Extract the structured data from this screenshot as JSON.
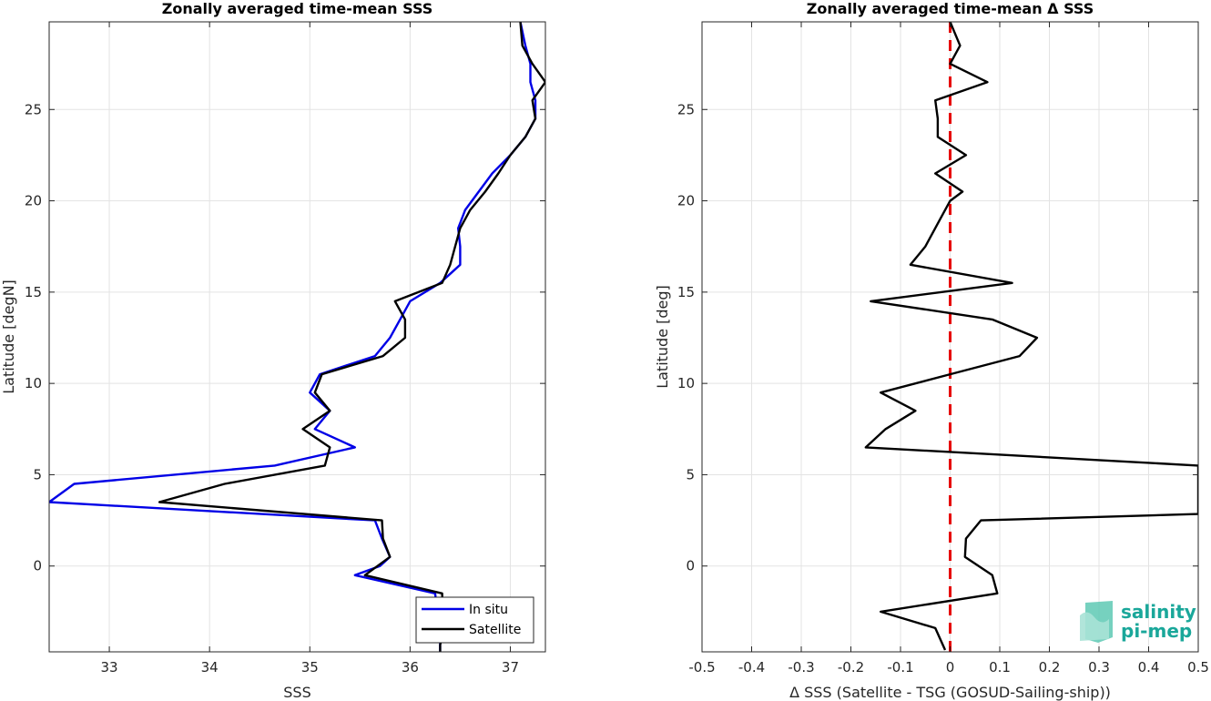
{
  "chart_data": [
    {
      "type": "line",
      "title": "Zonally averaged time-mean SSS",
      "xlabel": "SSS",
      "ylabel": "Latitude [degN]",
      "xlim": [
        32.4,
        37.35
      ],
      "ylim": [
        -4.7,
        29.8
      ],
      "xticks": [
        33,
        34,
        35,
        36,
        37
      ],
      "yticks": [
        0,
        5,
        10,
        15,
        20,
        25
      ],
      "grid": true,
      "legend_position": "bottom-right",
      "series": [
        {
          "name": "In situ",
          "color": "#0000e6",
          "points": [
            [
              36.3,
              -4.7
            ],
            [
              36.3,
              -4.3
            ],
            [
              36.3,
              -3.8
            ],
            [
              36.25,
              -1.5
            ],
            [
              35.45,
              -0.5
            ],
            [
              35.7,
              0.0
            ],
            [
              35.8,
              0.5
            ],
            [
              35.72,
              1.5
            ],
            [
              35.65,
              2.5
            ],
            [
              32.4,
              3.5
            ],
            [
              32.65,
              4.5
            ],
            [
              34.65,
              5.5
            ],
            [
              35.45,
              6.5
            ],
            [
              35.05,
              7.5
            ],
            [
              35.2,
              8.5
            ],
            [
              35.0,
              9.5
            ],
            [
              35.1,
              10.5
            ],
            [
              35.65,
              11.5
            ],
            [
              35.8,
              12.5
            ],
            [
              35.9,
              13.5
            ],
            [
              36.0,
              14.5
            ],
            [
              36.3,
              15.5
            ],
            [
              36.5,
              16.5
            ],
            [
              36.5,
              17.5
            ],
            [
              36.48,
              18.5
            ],
            [
              36.55,
              19.5
            ],
            [
              36.82,
              21.5
            ],
            [
              37.0,
              22.5
            ],
            [
              37.15,
              23.5
            ],
            [
              37.25,
              24.5
            ],
            [
              37.25,
              25.5
            ],
            [
              37.2,
              26.5
            ],
            [
              37.2,
              27.5
            ],
            [
              37.15,
              28.5
            ],
            [
              37.1,
              29.8
            ]
          ]
        },
        {
          "name": "Satellite",
          "color": "#000000",
          "points": [
            [
              36.3,
              -4.7
            ],
            [
              36.3,
              -4.3
            ],
            [
              36.33,
              -3.8
            ],
            [
              36.32,
              -1.5
            ],
            [
              35.55,
              -0.5
            ],
            [
              35.8,
              0.5
            ],
            [
              35.73,
              1.5
            ],
            [
              35.72,
              2.5
            ],
            [
              33.5,
              3.5
            ],
            [
              34.15,
              4.5
            ],
            [
              35.15,
              5.5
            ],
            [
              35.2,
              6.5
            ],
            [
              34.93,
              7.5
            ],
            [
              35.2,
              8.5
            ],
            [
              35.05,
              9.5
            ],
            [
              35.12,
              10.5
            ],
            [
              35.73,
              11.5
            ],
            [
              35.95,
              12.5
            ],
            [
              35.95,
              13.5
            ],
            [
              35.85,
              14.5
            ],
            [
              36.32,
              15.5
            ],
            [
              36.4,
              16.5
            ],
            [
              36.45,
              17.5
            ],
            [
              36.5,
              18.5
            ],
            [
              36.6,
              19.5
            ],
            [
              36.75,
              20.5
            ],
            [
              36.88,
              21.5
            ],
            [
              37.0,
              22.5
            ],
            [
              37.15,
              23.5
            ],
            [
              37.25,
              24.5
            ],
            [
              37.22,
              25.5
            ],
            [
              37.35,
              26.5
            ],
            [
              37.22,
              27.5
            ],
            [
              37.12,
              28.5
            ],
            [
              37.1,
              29.8
            ]
          ]
        }
      ]
    },
    {
      "type": "line",
      "title": "Zonally averaged time-mean Δ SSS",
      "xlabel": "Δ SSS (Satellite - TSG (GOSUD-Sailing-ship))",
      "ylabel": "Latitude [deg]",
      "xlim": [
        -0.5,
        0.5
      ],
      "ylim": [
        -4.7,
        29.8
      ],
      "xticks": [
        -0.5,
        -0.4,
        -0.3,
        -0.2,
        -0.1,
        0,
        0.1,
        0.2,
        0.3,
        0.4,
        0.5
      ],
      "xtick_labels": [
        "-0.5",
        "-0.4",
        "-0.3",
        "-0.2",
        "-0.1",
        "0",
        "0.1",
        "0.2",
        "0.3",
        "0.4",
        "0.5"
      ],
      "yticks": [
        0,
        5,
        10,
        15,
        20,
        25
      ],
      "grid": true,
      "reference_line": {
        "x": 0,
        "color": "#e60000",
        "style": "dashed"
      },
      "series": [
        {
          "color": "#000000",
          "points": [
            [
              -0.01,
              -4.6
            ],
            [
              -0.03,
              -3.4
            ],
            [
              -0.14,
              -2.5
            ],
            [
              0.095,
              -1.5
            ],
            [
              0.085,
              -0.5
            ],
            [
              0.03,
              0.5
            ],
            [
              0.032,
              1.5
            ],
            [
              0.062,
              2.5
            ],
            [
              0.5,
              2.85
            ],
            [
              0.5,
              5.5
            ],
            [
              -0.17,
              6.5
            ],
            [
              -0.13,
              7.5
            ],
            [
              -0.07,
              8.5
            ],
            [
              -0.14,
              9.5
            ],
            [
              0.0,
              10.5
            ],
            [
              0.14,
              11.5
            ],
            [
              0.175,
              12.5
            ],
            [
              0.085,
              13.5
            ],
            [
              -0.16,
              14.5
            ],
            [
              0.125,
              15.5
            ],
            [
              -0.08,
              16.5
            ],
            [
              -0.05,
              17.5
            ],
            [
              -0.04,
              18.0
            ],
            [
              -0.02,
              19.0
            ],
            [
              0.0,
              20.0
            ],
            [
              0.025,
              20.5
            ],
            [
              -0.03,
              21.5
            ],
            [
              0.032,
              22.5
            ],
            [
              -0.025,
              23.5
            ],
            [
              -0.025,
              24.5
            ],
            [
              -0.03,
              25.5
            ],
            [
              0.075,
              26.5
            ],
            [
              0.0,
              27.5
            ],
            [
              0.02,
              28.5
            ],
            [
              0.0,
              29.8
            ]
          ]
        }
      ]
    }
  ],
  "legend": {
    "items": [
      "In situ",
      "Satellite"
    ]
  },
  "logo": {
    "line1": "salinity",
    "line2": "pi-mep"
  }
}
